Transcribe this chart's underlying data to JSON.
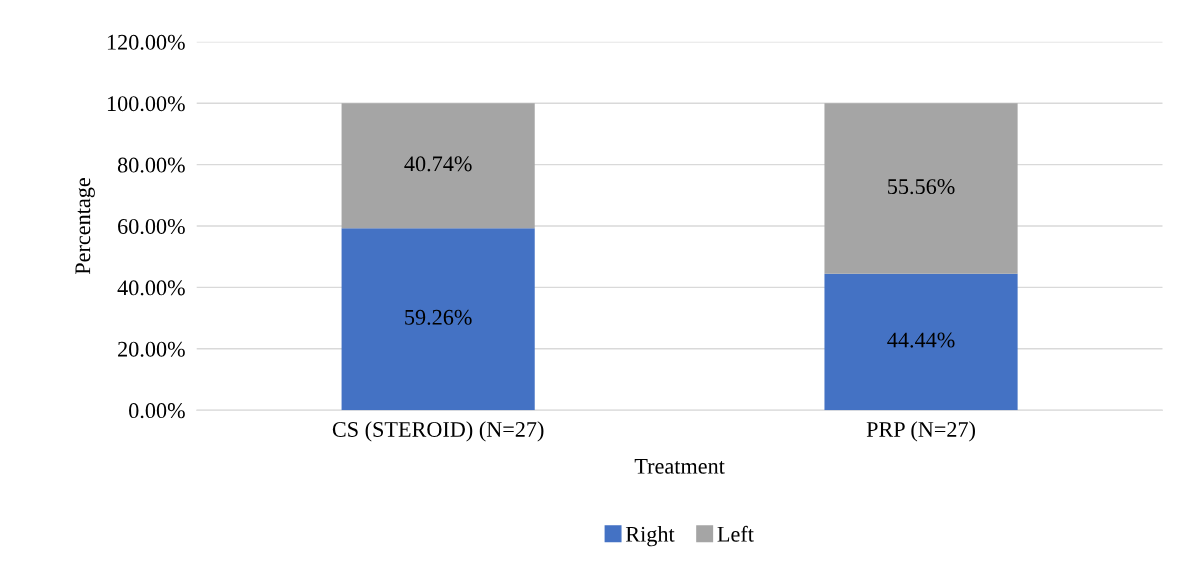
{
  "chart_data": {
    "type": "bar",
    "stacked": true,
    "xlabel": "Treatment",
    "ylabel": "Percentage",
    "categories": [
      "CS (STEROID) (N=27)",
      "PRP (N=27)"
    ],
    "series": [
      {
        "name": "Right",
        "color": "#4472c4",
        "values": [
          59.26,
          44.44
        ],
        "value_labels": [
          "59.26%",
          "44.44%"
        ]
      },
      {
        "name": "Left",
        "color": "#a5a5a5",
        "values": [
          40.74,
          55.56
        ],
        "value_labels": [
          "40.74%",
          "55.56%"
        ]
      }
    ],
    "ylim": [
      0,
      120
    ],
    "yticks": [
      {
        "value": 0,
        "label": "0.00%"
      },
      {
        "value": 20,
        "label": "20.00%"
      },
      {
        "value": 40,
        "label": "40.00%"
      },
      {
        "value": 60,
        "label": "60.00%"
      },
      {
        "value": 80,
        "label": "80.00%"
      },
      {
        "value": 100,
        "label": "100.00%"
      },
      {
        "value": 120,
        "label": "120.00%"
      }
    ],
    "grid": "y",
    "legend": "bottom"
  }
}
